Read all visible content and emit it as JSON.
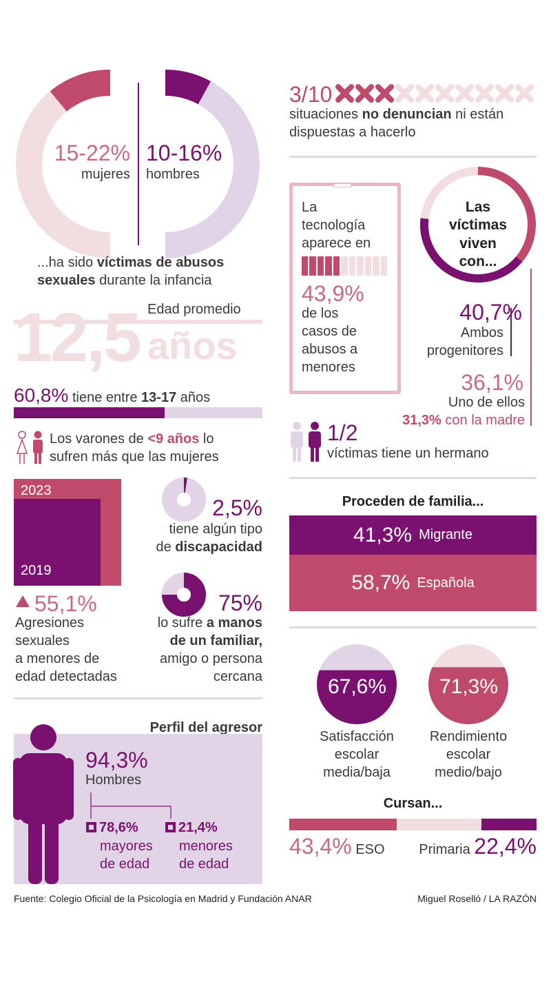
{
  "colors": {
    "purple": "#7a1170",
    "pink": "#c04a6c",
    "light_pink": "#f2dde1",
    "lavender": "#e1d4e7",
    "text": "#3a3a3a"
  },
  "top_left": {
    "women_pct": "15-22%",
    "women_label": "mujeres",
    "men_pct": "10-16%",
    "men_label": "hombres",
    "caption_prefix": "...ha sido ",
    "caption_bold": "víctimas de abusos sexuales",
    "caption_suffix": " durante la infancia"
  },
  "age": {
    "label": "Edad promedio",
    "value": "12,5",
    "unit": "años"
  },
  "age_range": {
    "pct": "60,8%",
    "text1": "tiene entre ",
    "bold": "13-17",
    "text2": " años",
    "fraction": 0.608
  },
  "boys": {
    "text1": "Los varones de ",
    "bold": "<9 años",
    "text2": " lo",
    "line2": "sufren más que las mujeres"
  },
  "years": {
    "y_top": "2023",
    "y_bottom": "2019",
    "pct": "55,1%",
    "desc": [
      "Agresiones",
      "sexuales",
      "a menores de",
      "edad detectadas"
    ]
  },
  "disability": {
    "pct": "2,5%",
    "line1": "tiene algún tipo",
    "line2_bold": "discapacidad",
    "line2_prefix": "de ",
    "fraction": 0.025
  },
  "familiar": {
    "pct": "75%",
    "line1_pre": "lo sufre ",
    "line1_bold": "a manos",
    "line2_bold": "de un familiar,",
    "line3": "amigo o persona",
    "line4": "cercana",
    "fraction": 0.75
  },
  "aggressor": {
    "title": "Perfil del agresor",
    "pct": "94,3%",
    "label": "Hombres",
    "adults_pct": "78,6%",
    "adults_label1": "mayores",
    "adults_label2": "de edad",
    "minors_pct": "21,4%",
    "minors_label1": "menores",
    "minors_label2": "de edad"
  },
  "report": {
    "fraction": "3/10",
    "total": 10,
    "marked": 3,
    "line1_pre": "situaciones ",
    "line1_bold": "no denuncian",
    "line1_post": " ni están",
    "line2": "dispuestas a hacerlo"
  },
  "tech": {
    "lines": [
      "La",
      "tecnología",
      "aparece en"
    ],
    "pct": "43,9%",
    "lines2": [
      "de los",
      "casos de",
      "abusos a",
      "menores"
    ],
    "fraction": 0.439
  },
  "live": {
    "title_lines": [
      "Las",
      "víctimas",
      "viven",
      "con..."
    ],
    "both_pct": "40,7%",
    "both_label1": "Ambos",
    "both_label2": "progenitores",
    "one_pct": "36,1%",
    "one_label": "Uno de ellos",
    "mother_pct": "31,3%",
    "mother_label": " con la madre"
  },
  "sibling": {
    "pct": "1/2",
    "label": "víctimas tiene un hermano"
  },
  "family": {
    "title": "Proceden de familia...",
    "rows": [
      {
        "pct": "41,3%",
        "label": "Migrante"
      },
      {
        "pct": "58,7%",
        "label": "Española"
      }
    ]
  },
  "school": {
    "items": [
      {
        "pct": "67,6%",
        "label": [
          "Satisfacción",
          "escolar",
          "media/baja"
        ],
        "fraction": 0.676
      },
      {
        "pct": "71,3%",
        "label": [
          "Rendimiento",
          "escolar",
          "medio/bajo"
        ],
        "fraction": 0.713
      }
    ]
  },
  "cursan": {
    "title": "Cursan...",
    "eso_pct": "43,4%",
    "eso_label": "ESO",
    "prim_label": "Primaria",
    "prim_pct": "22,4%"
  },
  "chart_data": [
    {
      "type": "pie",
      "title": "",
      "categories": [
        "mujeres",
        "hombres"
      ],
      "values": [
        22,
        16
      ]
    },
    {
      "type": "bar",
      "categories": [
        "13-17 años"
      ],
      "values": [
        60.8
      ]
    },
    {
      "type": "bar",
      "categories": [
        "Migrante",
        "Española"
      ],
      "values": [
        41.3,
        58.7
      ]
    },
    {
      "type": "bar",
      "categories": [
        "ESO",
        "Primaria"
      ],
      "values": [
        43.4,
        22.4
      ]
    }
  ],
  "footer": {
    "source": "Fuente: Colegio Oficial de la Psicología en Madrid y Fundación ANAR",
    "credit": "Miguel Roselló / LA RAZÓN"
  }
}
